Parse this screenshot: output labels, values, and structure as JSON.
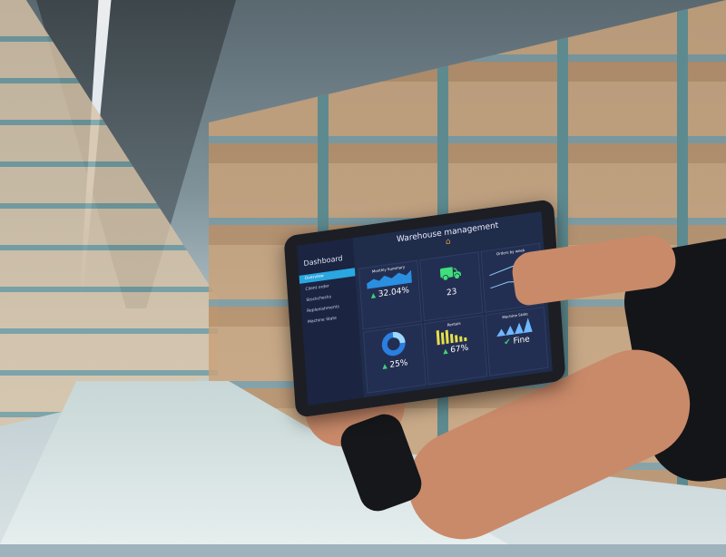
{
  "tablet": {
    "title": "Warehouse management",
    "sidebar": {
      "heading": "Dashboard",
      "items": [
        "Overview",
        "Client order",
        "Stockchecks",
        "Replenishments",
        "Machine State"
      ],
      "active": "Overview"
    },
    "cards": [
      {
        "label": "Monthly Summary",
        "value": "32.04%",
        "icon": "area-chart-icon"
      },
      {
        "label": "",
        "value": "23",
        "icon": "truck-icon"
      },
      {
        "label": "Orders by week",
        "value": "",
        "icon": "line-chart-icon"
      },
      {
        "label": "",
        "value": "25%",
        "icon": "donut-chart-icon"
      },
      {
        "label": "Rentals",
        "value": "67%",
        "icon": "bar-chart-icon"
      },
      {
        "label": "Machine State",
        "value": "Fine",
        "icon": "check-icon"
      }
    ],
    "colors": {
      "screen": "#1f2c4a",
      "accent": "#2aa7e0",
      "green": "#3fd27a",
      "yellow": "#e6e04a"
    }
  }
}
